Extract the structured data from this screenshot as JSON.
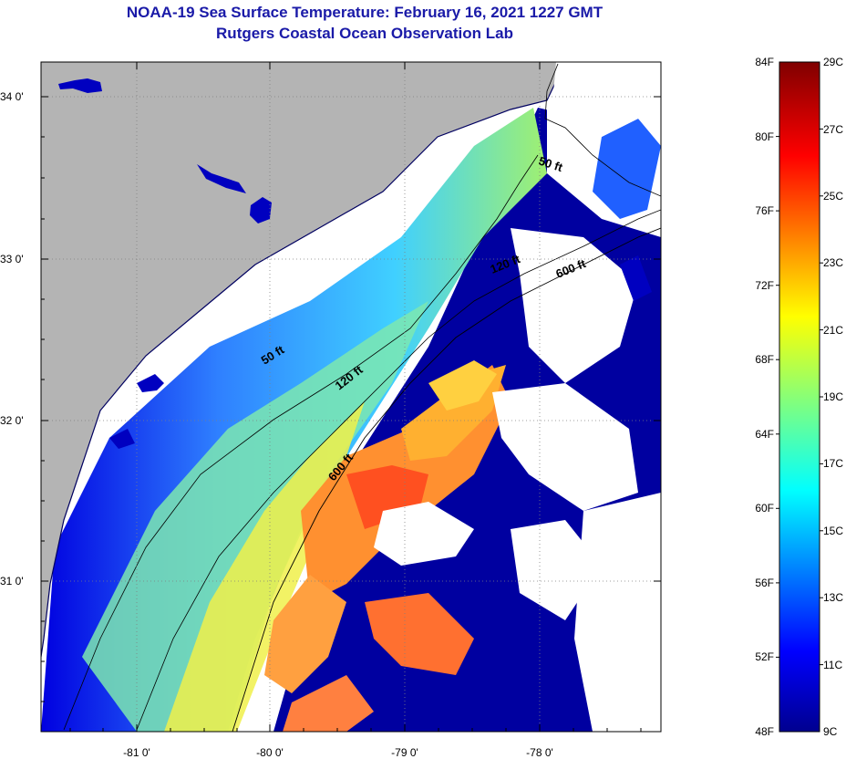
{
  "title": "NOAA-19 Sea Surface Temperature:  February 16, 2021 1227 GMT",
  "subtitle": "Rutgers Coastal Ocean Observation Lab",
  "map": {
    "lat_range": [
      30.2,
      34.2
    ],
    "lon_range": [
      -81.8,
      -77.2
    ],
    "lat_labels": [
      "34 0'",
      "33 0'",
      "32 0'",
      "31 0'"
    ],
    "lon_labels": [
      "-81 0'",
      "-80 0'",
      "-79 0'",
      "-78 0'"
    ],
    "colors": {
      "land": "#b4b4b4",
      "cloud": "#ffffff",
      "cold": "#0000a0"
    },
    "contour_labels": [
      "50 ft",
      "120 ft",
      "600 ft",
      "50 ft",
      "120 ft",
      "600 ft"
    ]
  },
  "colorbar": {
    "f_labels": [
      "84F",
      "80F",
      "76F",
      "72F",
      "68F",
      "64F",
      "60F",
      "56F",
      "52F",
      "48F"
    ],
    "c_labels": [
      "29C",
      "27C",
      "25C",
      "23C",
      "21C",
      "19C",
      "17C",
      "15C",
      "13C",
      "11C",
      "9C"
    ],
    "range_f": [
      48,
      84
    ],
    "colormap": "jet"
  }
}
